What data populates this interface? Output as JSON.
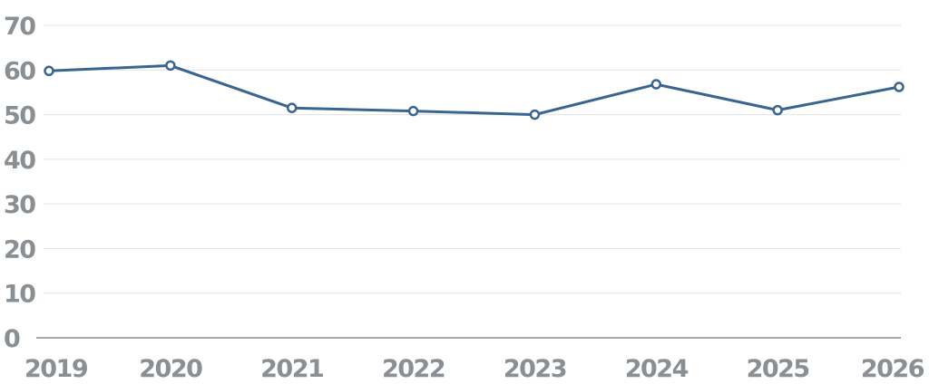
{
  "colors": {
    "series": "#3a6591",
    "tick_text": "#8a8f94",
    "gridline": "#e3e3e3",
    "axis": "#8c8c8c"
  },
  "chart_data": {
    "type": "line",
    "categories": [
      "2019",
      "2020",
      "2021",
      "2022",
      "2023",
      "2024",
      "2025",
      "2026"
    ],
    "series": [
      {
        "values": [
          59.8,
          61.0,
          51.5,
          50.8,
          50.0,
          56.8,
          51.0,
          56.2
        ]
      }
    ],
    "yticks": [
      "0",
      "10",
      "20",
      "30",
      "40",
      "50",
      "60",
      "70"
    ],
    "ylim": [
      0,
      70
    ],
    "grid": true,
    "markers": "hollow-circle",
    "legend": "none",
    "title": "",
    "xlabel": "",
    "ylabel": ""
  }
}
